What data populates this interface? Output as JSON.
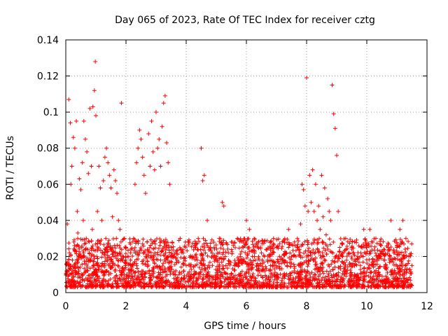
{
  "chart_data": {
    "type": "scatter",
    "title": "Day 065 of 2023, Rate Of TEC Index for receiver cztg",
    "xlabel": "GPS time / hours",
    "ylabel": "ROTI / TECUs",
    "xlim": [
      0,
      12
    ],
    "ylim": [
      0,
      0.14
    ],
    "x_ticks": [
      "0",
      "2",
      "4",
      "6",
      "8",
      "10",
      "12"
    ],
    "y_ticks": [
      "0",
      "0.02",
      "0.04",
      "0.06",
      "0.08",
      "0.1",
      "0.12",
      "0.14"
    ],
    "x_tick_values": [
      0,
      2,
      4,
      6,
      8,
      10,
      12
    ],
    "y_tick_values": [
      0,
      0.02,
      0.04,
      0.06,
      0.08,
      0.1,
      0.12,
      0.14
    ],
    "grid": true,
    "marker": "+",
    "color": "#ff0000",
    "series": [
      {
        "name": "ROTI",
        "x": [
          0.03,
          0.05,
          0.08,
          0.1,
          0.12,
          0.15,
          0.17,
          0.2,
          0.22,
          0.25,
          0.27,
          0.3,
          0.32,
          0.35,
          0.38,
          0.4,
          0.43,
          0.45,
          0.48,
          0.5,
          0.53,
          0.55,
          0.58,
          0.6,
          0.63,
          0.65,
          0.68,
          0.7,
          0.73,
          0.75,
          0.78,
          0.8,
          0.83,
          0.85,
          0.88,
          0.9,
          0.93,
          0.95,
          0.98,
          1.0,
          1.03,
          1.05,
          1.08,
          1.1,
          1.13,
          1.15,
          1.18,
          1.2,
          1.23,
          1.25,
          1.28,
          1.3,
          1.33,
          1.35,
          1.38,
          1.4,
          1.43,
          1.45,
          1.48,
          1.5,
          1.53,
          1.55,
          1.58,
          1.6,
          1.63,
          1.65,
          1.68,
          1.7,
          1.73,
          1.75,
          1.78,
          1.8,
          1.83,
          1.85,
          1.88,
          1.9,
          1.93,
          1.95,
          1.98,
          2.0,
          2.03,
          2.05,
          2.08,
          2.1,
          2.13,
          2.15,
          2.18,
          2.2,
          2.25,
          2.3,
          2.35,
          2.4,
          2.45,
          2.5,
          2.55,
          2.6,
          2.65,
          2.7,
          2.75,
          2.8,
          2.85,
          2.9,
          2.95,
          3.0,
          3.05,
          3.1,
          3.15,
          3.2,
          3.25,
          3.3,
          3.35,
          3.4,
          3.45,
          3.5,
          3.6,
          3.7,
          3.8,
          3.9,
          4.0,
          4.1,
          4.2,
          4.3,
          4.4,
          4.5,
          4.55,
          4.6,
          4.7,
          4.8,
          4.9,
          5.0,
          5.1,
          5.2,
          5.25,
          5.3,
          5.4,
          5.5,
          5.6,
          5.7,
          5.8,
          5.9,
          6.0,
          6.1,
          6.2,
          6.3,
          6.4,
          6.5,
          6.6,
          6.7,
          6.8,
          6.9,
          7.0,
          7.1,
          7.2,
          7.3,
          7.4,
          7.5,
          7.6,
          7.7,
          7.8,
          7.85,
          7.9,
          7.95,
          8.0,
          8.05,
          8.1,
          8.15,
          8.2,
          8.25,
          8.3,
          8.35,
          8.4,
          8.45,
          8.5,
          8.55,
          8.6,
          8.65,
          8.7,
          8.75,
          8.8,
          8.85,
          8.9,
          8.95,
          9.0,
          9.05,
          9.1,
          9.2,
          9.3,
          9.4,
          9.5,
          9.6,
          9.7,
          9.8,
          9.9,
          10.0,
          10.1,
          10.2,
          10.3,
          10.4,
          10.5,
          10.6,
          10.7,
          10.8,
          10.9,
          11.0,
          11.1,
          11.2,
          11.3,
          11.4,
          11.5
        ],
        "y": [
          0.012,
          0.038,
          0.015,
          0.107,
          0.022,
          0.094,
          0.06,
          0.07,
          0.018,
          0.086,
          0.028,
          0.08,
          0.012,
          0.095,
          0.045,
          0.033,
          0.02,
          0.063,
          0.014,
          0.057,
          0.025,
          0.072,
          0.04,
          0.095,
          0.016,
          0.085,
          0.03,
          0.078,
          0.012,
          0.066,
          0.022,
          0.102,
          0.018,
          0.07,
          0.035,
          0.103,
          0.015,
          0.112,
          0.128,
          0.098,
          0.02,
          0.045,
          0.013,
          0.07,
          0.028,
          0.058,
          0.012,
          0.04,
          0.022,
          0.062,
          0.015,
          0.075,
          0.03,
          0.08,
          0.018,
          0.072,
          0.01,
          0.065,
          0.025,
          0.058,
          0.014,
          0.042,
          0.02,
          0.068,
          0.012,
          0.062,
          0.03,
          0.055,
          0.015,
          0.04,
          0.022,
          0.035,
          0.01,
          0.105,
          0.018,
          0.02,
          0.012,
          0.03,
          0.015,
          0.025,
          0.01,
          0.02,
          0.008,
          0.016,
          0.012,
          0.018,
          0.009,
          0.014,
          0.03,
          0.06,
          0.072,
          0.08,
          0.09,
          0.085,
          0.075,
          0.065,
          0.055,
          0.028,
          0.088,
          0.07,
          0.095,
          0.078,
          0.068,
          0.1,
          0.08,
          0.085,
          0.07,
          0.092,
          0.105,
          0.109,
          0.083,
          0.072,
          0.06,
          0.025,
          0.02,
          0.018,
          0.03,
          0.022,
          0.015,
          0.028,
          0.02,
          0.015,
          0.03,
          0.08,
          0.062,
          0.065,
          0.04,
          0.025,
          0.02,
          0.018,
          0.03,
          0.05,
          0.048,
          0.02,
          0.022,
          0.028,
          0.015,
          0.03,
          0.02,
          0.025,
          0.04,
          0.035,
          0.02,
          0.018,
          0.028,
          0.022,
          0.02,
          0.018,
          0.015,
          0.03,
          0.025,
          0.02,
          0.018,
          0.022,
          0.035,
          0.02,
          0.028,
          0.025,
          0.038,
          0.06,
          0.057,
          0.048,
          0.119,
          0.045,
          0.065,
          0.05,
          0.068,
          0.045,
          0.06,
          0.04,
          0.048,
          0.035,
          0.065,
          0.042,
          0.058,
          0.032,
          0.052,
          0.045,
          0.04,
          0.115,
          0.099,
          0.091,
          0.076,
          0.045,
          0.025,
          0.02,
          0.03,
          0.022,
          0.025,
          0.018,
          0.02,
          0.022,
          0.035,
          0.025,
          0.035,
          0.028,
          0.03,
          0.02,
          0.022,
          0.018,
          0.025,
          0.04,
          0.022,
          0.025,
          0.035,
          0.04,
          0.03,
          0.02,
          0.015
        ],
        "background_band": {
          "x_range": [
            0,
            11.5
          ],
          "y_range": [
            0.003,
            0.03
          ],
          "note": "dense cloud of low ROTI samples"
        }
      }
    ]
  }
}
